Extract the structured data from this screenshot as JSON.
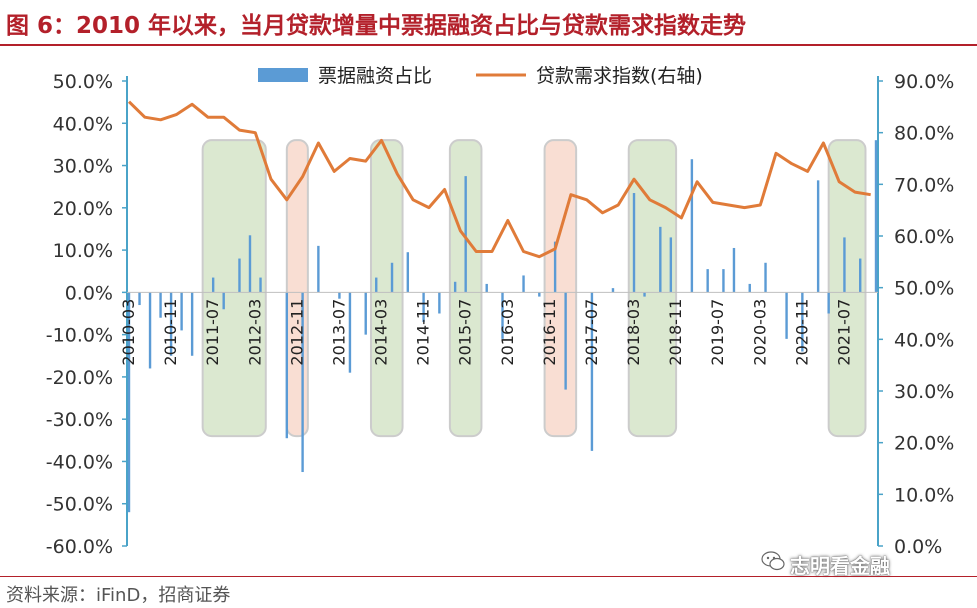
{
  "header": {
    "title": "图 6：2010 年以来，当月贷款增量中票据融资占比与贷款需求指数走势"
  },
  "footer": {
    "source": "资料来源：iFinD，招商证券"
  },
  "watermark": {
    "text": "志明看金融"
  },
  "colors": {
    "bar": "#5b9bd5",
    "line": "#e07b39",
    "axis": "#4aa3c8",
    "highlight_green": "#d5e5c8",
    "highlight_pink": "#f8d9cc"
  },
  "chart_data": {
    "type": "bar+line",
    "legend": {
      "position": "top",
      "entries": [
        "票据融资占比",
        "贷款需求指数(右轴)"
      ]
    },
    "left_axis": {
      "ticks": [
        "50.0%",
        "40.0%",
        "30.0%",
        "20.0%",
        "10.0%",
        "0.0%",
        "-10.0%",
        "-20.0%",
        "-30.0%",
        "-40.0%",
        "-50.0%",
        "-60.0%"
      ],
      "ylim": [
        -60,
        50
      ],
      "unit": "%"
    },
    "right_axis": {
      "ticks": [
        "90.0%",
        "80.0%",
        "70.0%",
        "60.0%",
        "50.0%",
        "40.0%",
        "30.0%",
        "20.0%",
        "10.0%",
        "0.0%"
      ],
      "ylim": [
        0,
        90
      ],
      "unit": "%"
    },
    "x_tick_labels": [
      "2010-03",
      "2010-11",
      "2011-07",
      "2012-03",
      "2012-11",
      "2013-07",
      "2014-03",
      "2014-11",
      "2015-07",
      "2016-03",
      "2016-11",
      "2017-07",
      "2018-03",
      "2018-11",
      "2019-07",
      "2020-03",
      "2020-11",
      "2021-07"
    ],
    "highlight_periods": [
      {
        "start": "2011-05",
        "end": "2012-05",
        "color": "green"
      },
      {
        "start": "2012-09",
        "end": "2013-01",
        "color": "pink"
      },
      {
        "start": "2014-01",
        "end": "2014-07",
        "color": "green"
      },
      {
        "start": "2015-04",
        "end": "2015-10",
        "color": "green"
      },
      {
        "start": "2016-10",
        "end": "2017-04",
        "color": "pink"
      },
      {
        "start": "2018-02",
        "end": "2018-11",
        "color": "green"
      },
      {
        "start": "2021-04",
        "end": "2021-11",
        "color": "green"
      }
    ],
    "bars": {
      "name": "票据融资占比",
      "points": [
        [
          "2010-03",
          -52
        ],
        [
          "2010-05",
          -3
        ],
        [
          "2010-07",
          -18
        ],
        [
          "2010-09",
          -6
        ],
        [
          "2010-11",
          -15
        ],
        [
          "2011-01",
          -9
        ],
        [
          "2011-03",
          -15
        ],
        [
          "2011-07",
          3.5
        ],
        [
          "2011-09",
          -4
        ],
        [
          "2011-12",
          8
        ],
        [
          "2012-02",
          13.5
        ],
        [
          "2012-04",
          3.5
        ],
        [
          "2012-09",
          -34.5
        ],
        [
          "2012-12",
          -42.5
        ],
        [
          "2013-03",
          11
        ],
        [
          "2013-07",
          -1.5
        ],
        [
          "2013-09",
          -19
        ],
        [
          "2013-12",
          -10
        ],
        [
          "2014-02",
          3.5
        ],
        [
          "2014-05",
          7
        ],
        [
          "2014-08",
          9.5
        ],
        [
          "2014-11",
          -7
        ],
        [
          "2015-02",
          -5
        ],
        [
          "2015-05",
          2.5
        ],
        [
          "2015-07",
          27.5
        ],
        [
          "2015-11",
          2
        ],
        [
          "2016-02",
          -11
        ],
        [
          "2016-06",
          4
        ],
        [
          "2016-09",
          -1
        ],
        [
          "2016-12",
          12
        ],
        [
          "2017-02",
          -23
        ],
        [
          "2017-07",
          -37.5
        ],
        [
          "2017-11",
          1
        ],
        [
          "2018-03",
          23.5
        ],
        [
          "2018-05",
          -1
        ],
        [
          "2018-08",
          15.5
        ],
        [
          "2018-10",
          13
        ],
        [
          "2019-02",
          31.5
        ],
        [
          "2019-05",
          5.5
        ],
        [
          "2019-08",
          5.5
        ],
        [
          "2019-10",
          10.5
        ],
        [
          "2020-01",
          2
        ],
        [
          "2020-04",
          7
        ],
        [
          "2020-08",
          -11
        ],
        [
          "2020-11",
          -14
        ],
        [
          "2021-02",
          26.5
        ],
        [
          "2021-04",
          -5
        ],
        [
          "2021-07",
          13
        ],
        [
          "2021-10",
          8
        ],
        [
          "2022-01",
          36
        ]
      ]
    },
    "line": {
      "name": "贷款需求指数(右轴)",
      "points": [
        [
          "2010-03",
          86
        ],
        [
          "2010-06",
          83
        ],
        [
          "2010-09",
          82.5
        ],
        [
          "2010-12",
          83.5
        ],
        [
          "2011-03",
          85.5
        ],
        [
          "2011-06",
          83
        ],
        [
          "2011-09",
          83
        ],
        [
          "2011-12",
          80.5
        ],
        [
          "2012-03",
          80
        ],
        [
          "2012-06",
          71
        ],
        [
          "2012-09",
          67
        ],
        [
          "2012-12",
          71.5
        ],
        [
          "2013-03",
          78
        ],
        [
          "2013-06",
          72.5
        ],
        [
          "2013-09",
          75
        ],
        [
          "2013-12",
          74.5
        ],
        [
          "2014-03",
          78.5
        ],
        [
          "2014-06",
          72
        ],
        [
          "2014-09",
          67
        ],
        [
          "2014-12",
          65.5
        ],
        [
          "2015-03",
          69
        ],
        [
          "2015-06",
          61
        ],
        [
          "2015-09",
          57
        ],
        [
          "2015-12",
          57
        ],
        [
          "2016-03",
          63
        ],
        [
          "2016-06",
          57
        ],
        [
          "2016-09",
          56
        ],
        [
          "2016-12",
          57.5
        ],
        [
          "2017-03",
          68
        ],
        [
          "2017-06",
          67
        ],
        [
          "2017-09",
          64.5
        ],
        [
          "2017-12",
          66
        ],
        [
          "2018-03",
          71
        ],
        [
          "2018-06",
          67
        ],
        [
          "2018-09",
          65.5
        ],
        [
          "2018-12",
          63.5
        ],
        [
          "2019-03",
          70.5
        ],
        [
          "2019-06",
          66.5
        ],
        [
          "2019-09",
          66
        ],
        [
          "2019-12",
          65.5
        ],
        [
          "2020-03",
          66
        ],
        [
          "2020-06",
          76
        ],
        [
          "2020-09",
          74
        ],
        [
          "2020-12",
          72.5
        ],
        [
          "2021-03",
          78
        ],
        [
          "2021-06",
          70.5
        ],
        [
          "2021-09",
          68.5
        ],
        [
          "2021-12",
          68
        ]
      ]
    }
  }
}
